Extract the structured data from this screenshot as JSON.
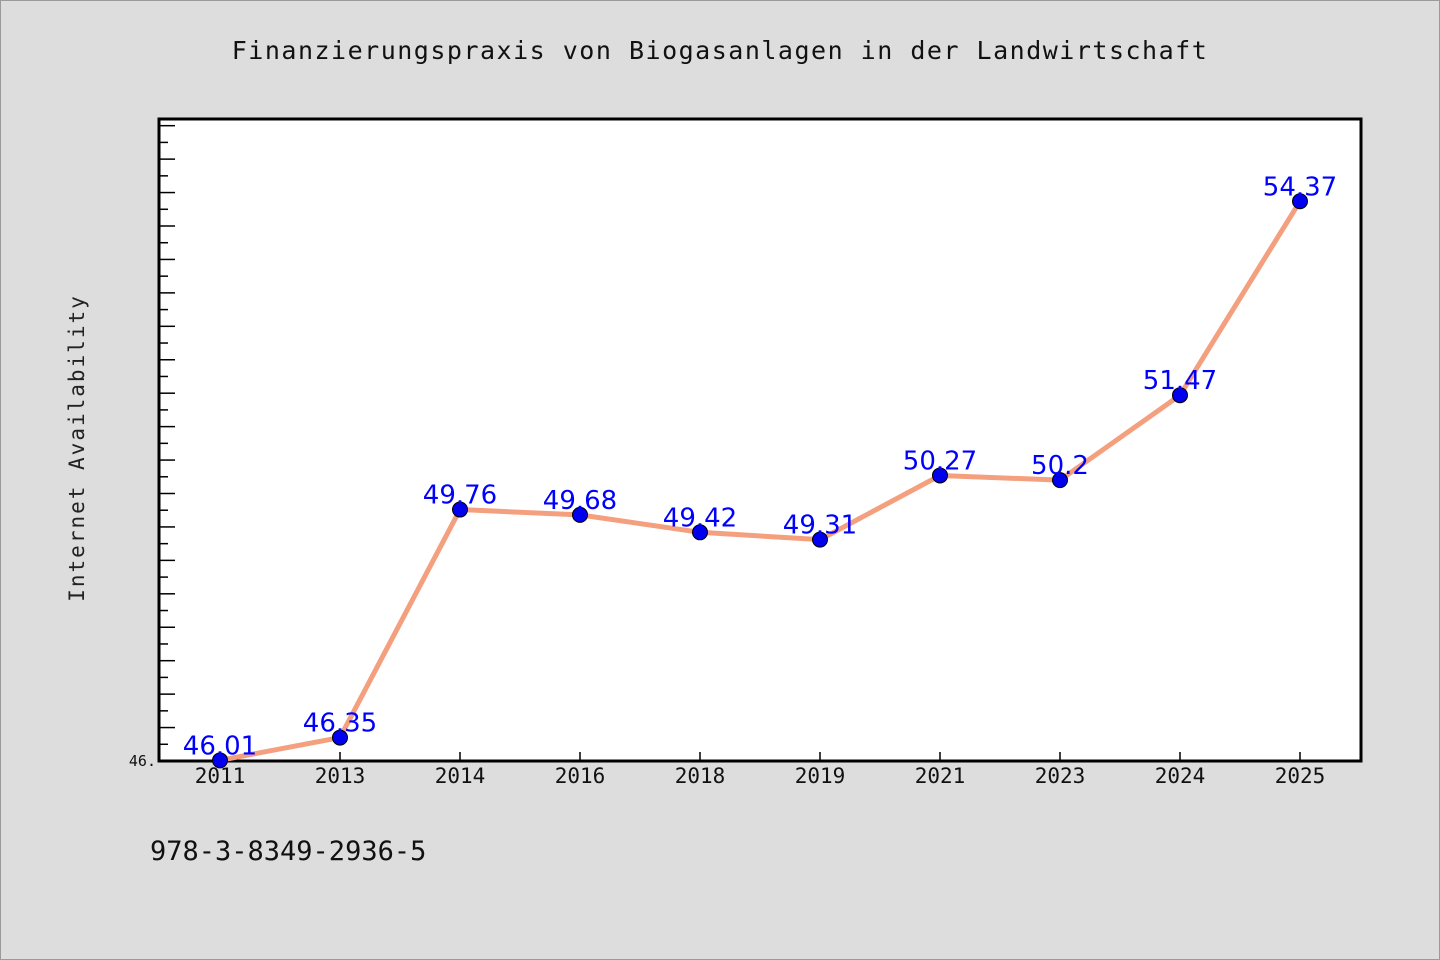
{
  "chart_data": {
    "type": "line",
    "title": "Finanzierungspraxis von Biogasanlagen in der Landwirtschaft",
    "xlabel": "",
    "ylabel": "Internet Availability",
    "categories": [
      "2011",
      "2013",
      "2014",
      "2016",
      "2018",
      "2019",
      "2021",
      "2023",
      "2024",
      "2025"
    ],
    "series": [
      {
        "values": [
          46.01,
          46.35,
          49.76,
          49.68,
          49.42,
          49.31,
          50.27,
          50.2,
          51.47,
          54.37
        ],
        "data_labels": [
          "46.01",
          "46.35",
          "49.76",
          "49.68",
          "49.42",
          "49.31",
          "50.27",
          "50.2",
          "51.47",
          "54.37"
        ]
      }
    ],
    "ylim": [
      46.0,
      55.6
    ],
    "y_tick_labels": [
      "46."
    ],
    "grid": false,
    "legend": "none",
    "colors": {
      "line": "#f4a07e",
      "marker": "#0000ee",
      "data_label": "#0000ff",
      "plot_background": "#ffffff",
      "figure_background": "#dddddd"
    }
  },
  "footer": {
    "code": "978-3-8349-2936-5"
  }
}
